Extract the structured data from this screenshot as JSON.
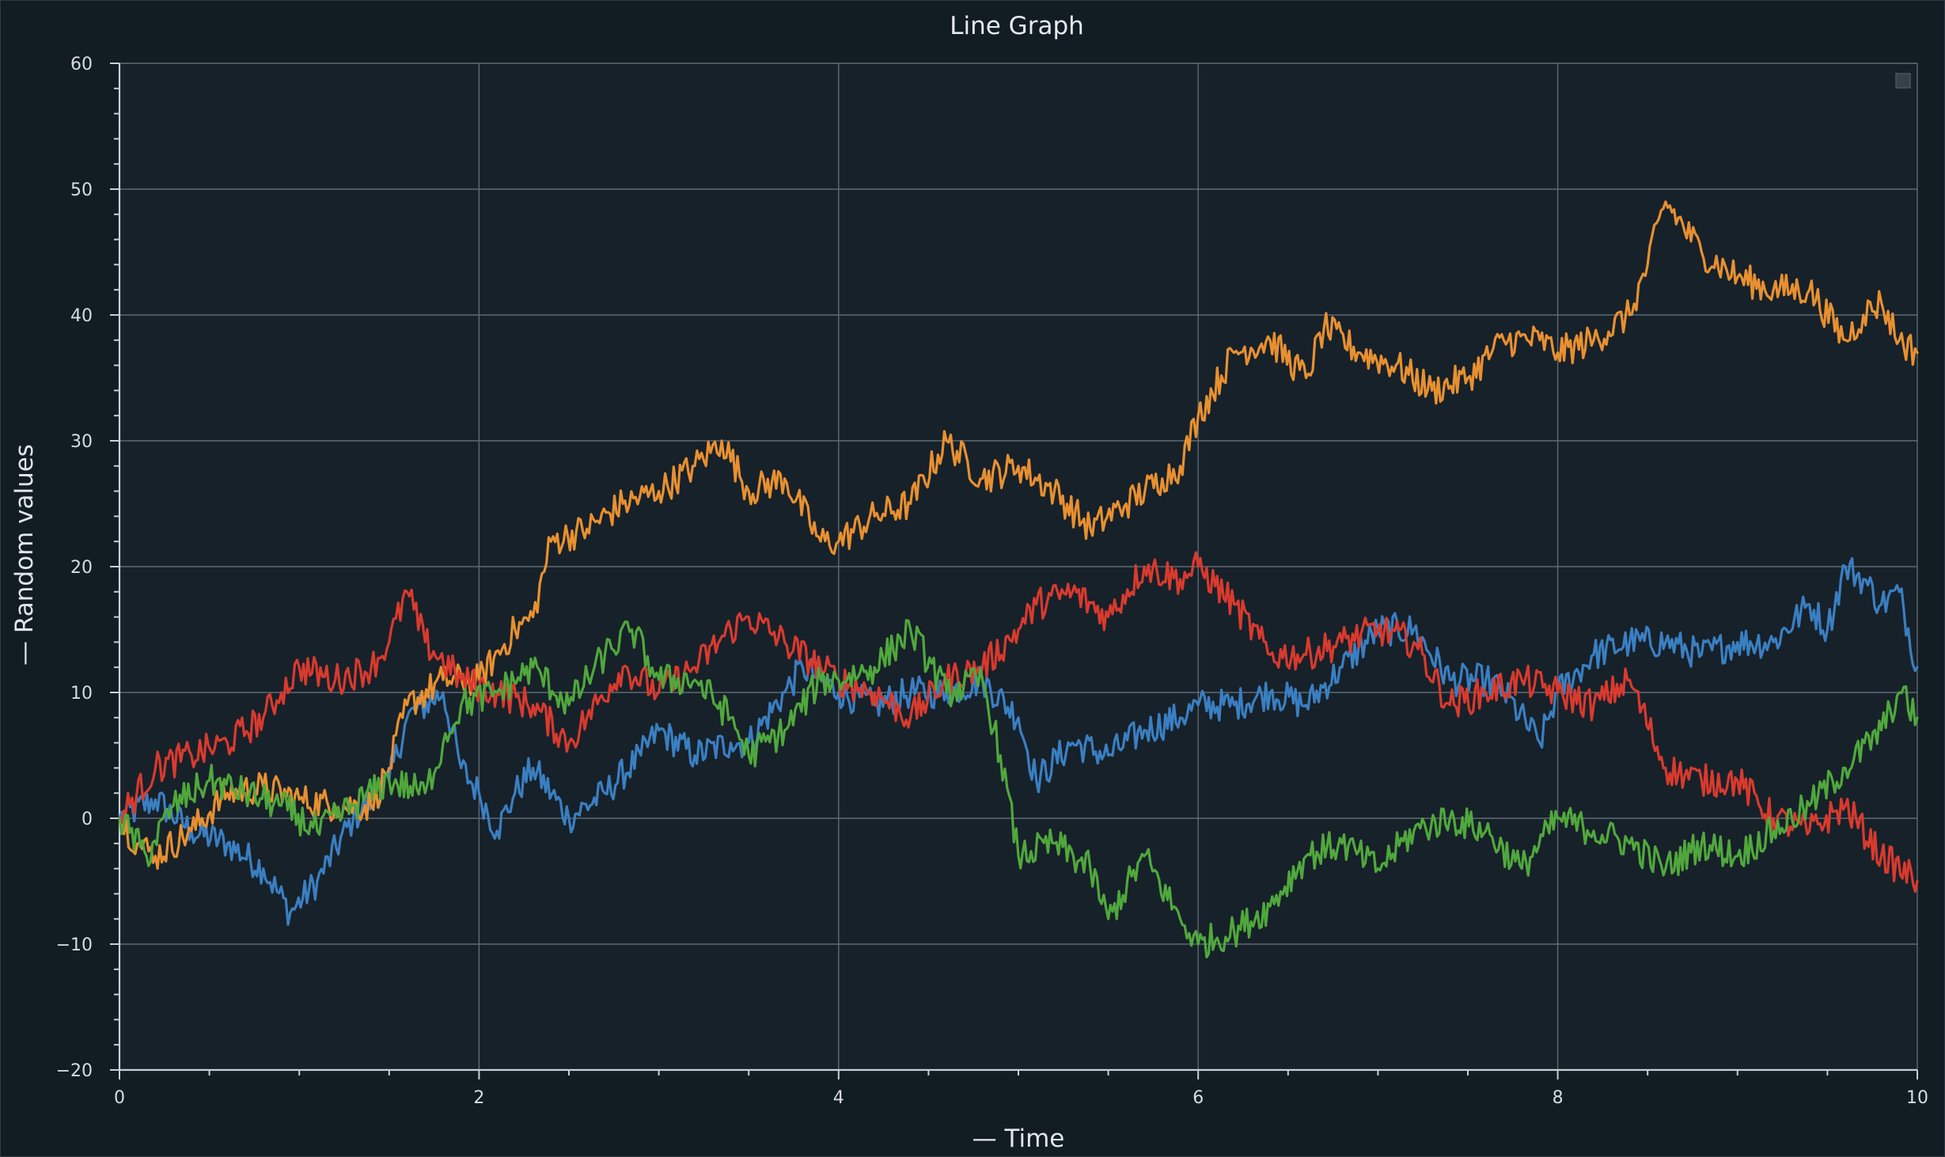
{
  "chart_data": {
    "type": "line",
    "title": "Line Graph",
    "xlabel": "— Time",
    "ylabel": "— Random values",
    "xlim": [
      0,
      10
    ],
    "ylim": [
      -20,
      60
    ],
    "x_ticks": [
      0,
      2,
      4,
      6,
      8,
      10
    ],
    "x_tick_labels": [
      "0",
      "2",
      "4",
      "6",
      "8",
      "10"
    ],
    "y_ticks": [
      -20,
      -10,
      0,
      10,
      20,
      30,
      40,
      50,
      60
    ],
    "y_tick_labels": [
      "−20",
      "−10",
      "0",
      "10",
      "20",
      "30",
      "40",
      "50",
      "60"
    ],
    "grid": true,
    "legend": "top-right (empty)",
    "series": [
      {
        "color": "#3a7fc2",
        "x": [
          0,
          0.2,
          0.4,
          0.6,
          0.8,
          0.95,
          1.1,
          1.3,
          1.5,
          1.6,
          1.8,
          1.9,
          2.0,
          2.1,
          2.2,
          2.3,
          2.5,
          2.7,
          2.9,
          3.0,
          3.2,
          3.4,
          3.5,
          3.7,
          3.8,
          4.0,
          4.2,
          4.4,
          4.6,
          4.8,
          5.0,
          5.1,
          5.3,
          5.5,
          5.7,
          5.9,
          6.0,
          6.2,
          6.4,
          6.6,
          6.8,
          7.0,
          7.2,
          7.4,
          7.6,
          7.7,
          7.9,
          8.0,
          8.2,
          8.4,
          8.6,
          8.8,
          9.0,
          9.2,
          9.4,
          9.5,
          9.6,
          9.7,
          9.8,
          9.9,
          10.0
        ],
        "y": [
          0,
          1.5,
          -1,
          -2,
          -4,
          -7.5,
          -5,
          0,
          3,
          8,
          10,
          4,
          2,
          -1,
          2,
          4,
          0,
          2,
          5,
          7,
          5,
          6,
          6,
          10,
          12,
          10,
          9,
          10,
          10,
          11,
          8,
          3,
          6,
          5,
          7,
          8,
          9,
          9,
          10,
          9,
          12,
          15,
          15,
          11,
          11,
          10,
          6,
          10,
          13,
          14,
          14,
          13,
          14,
          14,
          17,
          15,
          20,
          19,
          17,
          18,
          12
        ]
      },
      {
        "color": "#e89030",
        "x": [
          0,
          0.1,
          0.2,
          0.4,
          0.6,
          0.8,
          1.0,
          1.2,
          1.4,
          1.5,
          1.6,
          1.8,
          2.0,
          2.2,
          2.3,
          2.4,
          2.6,
          2.8,
          3.0,
          3.2,
          3.35,
          3.5,
          3.7,
          3.9,
          4.0,
          4.2,
          4.4,
          4.6,
          4.8,
          5.0,
          5.2,
          5.4,
          5.6,
          5.8,
          5.9,
          6.0,
          6.2,
          6.4,
          6.6,
          6.7,
          6.9,
          7.1,
          7.3,
          7.5,
          7.7,
          7.9,
          8.0,
          8.2,
          8.4,
          8.5,
          8.6,
          8.8,
          9.0,
          9.2,
          9.4,
          9.6,
          9.7,
          9.8,
          9.9,
          10.0
        ],
        "y": [
          0,
          -2,
          -3,
          -1,
          2,
          2.5,
          1.5,
          1,
          1,
          4,
          9,
          11,
          11,
          15,
          16,
          22,
          23,
          25,
          26,
          28,
          30,
          26,
          27,
          22,
          22,
          24,
          25,
          30,
          27,
          28,
          26,
          23,
          25,
          27,
          28,
          32,
          37,
          38,
          35,
          39,
          37,
          36,
          34,
          35,
          38,
          38,
          37,
          38,
          40,
          44,
          49,
          45,
          43,
          42,
          42,
          38,
          40,
          41,
          38,
          37
        ]
      },
      {
        "color": "#d93a2e",
        "x": [
          0,
          0.2,
          0.4,
          0.6,
          0.8,
          0.9,
          1.0,
          1.2,
          1.4,
          1.5,
          1.6,
          1.7,
          1.9,
          2.1,
          2.3,
          2.5,
          2.6,
          2.8,
          3.0,
          3.2,
          3.4,
          3.5,
          3.7,
          3.9,
          4.0,
          4.2,
          4.4,
          4.6,
          4.8,
          5.0,
          5.1,
          5.3,
          5.5,
          5.7,
          5.9,
          6.0,
          6.2,
          6.4,
          6.6,
          6.8,
          7.0,
          7.2,
          7.4,
          7.6,
          7.8,
          8.0,
          8.2,
          8.4,
          8.6,
          8.8,
          9.0,
          9.2,
          9.4,
          9.6,
          9.8,
          10.0
        ],
        "y": [
          0,
          4,
          5,
          6,
          8,
          10,
          12,
          11,
          12,
          14,
          18,
          14,
          11,
          10,
          9,
          6,
          8,
          12,
          10,
          12,
          15,
          16,
          14,
          12,
          11,
          10,
          8,
          11,
          12,
          15,
          17,
          18,
          16,
          20,
          19,
          20,
          17,
          13,
          13,
          14,
          15,
          14,
          9,
          10,
          11,
          10,
          9,
          11,
          4,
          3,
          3,
          0,
          -1,
          1,
          -3,
          -5
        ]
      },
      {
        "color": "#50a83c",
        "x": [
          0,
          0.15,
          0.3,
          0.5,
          0.7,
          0.9,
          1.1,
          1.3,
          1.5,
          1.7,
          1.8,
          1.9,
          2.1,
          2.3,
          2.5,
          2.7,
          2.85,
          3.0,
          3.2,
          3.4,
          3.5,
          3.7,
          3.9,
          4.0,
          4.2,
          4.4,
          4.6,
          4.8,
          4.9,
          5.0,
          5.2,
          5.4,
          5.5,
          5.7,
          5.9,
          6.0,
          6.2,
          6.4,
          6.6,
          6.8,
          7.0,
          7.2,
          7.4,
          7.6,
          7.8,
          8.0,
          8.2,
          8.4,
          8.6,
          8.8,
          9.0,
          9.2,
          9.4,
          9.6,
          9.8,
          9.9,
          10.0
        ],
        "y": [
          0,
          -3,
          1,
          3,
          2,
          1,
          -1,
          1,
          3,
          2,
          6,
          9,
          10,
          12,
          9,
          13,
          15,
          11,
          11,
          8,
          5,
          7,
          11,
          11,
          12,
          15,
          10,
          11,
          5,
          -3,
          -2,
          -4,
          -8,
          -3,
          -8,
          -10,
          -9,
          -7,
          -3,
          -2,
          -4,
          -1,
          0,
          -1,
          -4,
          0,
          -1,
          -2,
          -4,
          -2,
          -3,
          -1,
          1,
          4,
          7,
          10,
          8
        ]
      }
    ]
  }
}
